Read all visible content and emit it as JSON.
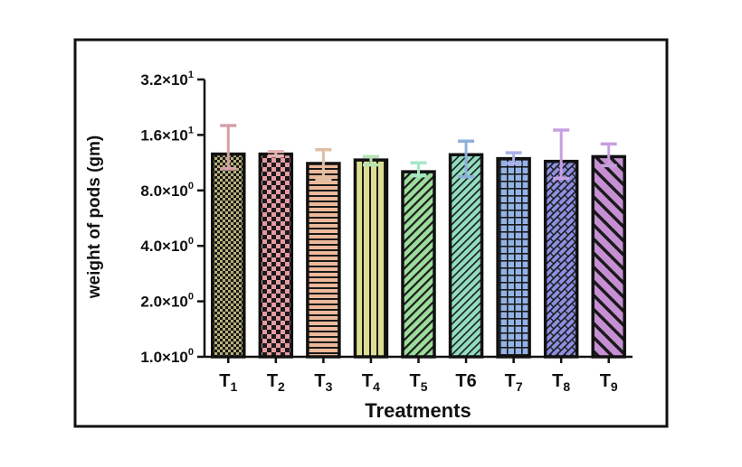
{
  "chart_data": {
    "type": "bar",
    "scale": "log2",
    "ylabel": "weight of pods (gm)",
    "xlabel": "Treatments",
    "ylim": [
      1.0,
      32.0
    ],
    "yticks": [
      {
        "value": 1.0,
        "mantissa": "1.0",
        "exp": "0"
      },
      {
        "value": 2.0,
        "mantissa": "2.0",
        "exp": "0"
      },
      {
        "value": 4.0,
        "mantissa": "4.0",
        "exp": "0"
      },
      {
        "value": 8.0,
        "mantissa": "8.0",
        "exp": "0"
      },
      {
        "value": 16.0,
        "mantissa": "1.6",
        "exp": "1"
      },
      {
        "value": 32.0,
        "mantissa": "3.2",
        "exp": "1"
      }
    ],
    "categories": [
      {
        "base": "T",
        "sub": "1"
      },
      {
        "base": "T",
        "sub": "2"
      },
      {
        "base": "T",
        "sub": "3"
      },
      {
        "base": "T",
        "sub": "4"
      },
      {
        "base": "T",
        "sub": "5"
      },
      {
        "base": "T6",
        "sub": ""
      },
      {
        "base": "T",
        "sub": "7"
      },
      {
        "base": "T",
        "sub": "8"
      },
      {
        "base": "T",
        "sub": "9"
      }
    ],
    "values": [
      12.6,
      12.6,
      11.2,
      11.7,
      10.1,
      12.5,
      11.9,
      11.5,
      12.2
    ],
    "err_high": [
      18.0,
      13.0,
      13.3,
      12.2,
      11.3,
      14.8,
      12.8,
      17.0,
      14.3
    ],
    "err_low": [
      10.5,
      12.3,
      9.2,
      11.0,
      9.6,
      9.5,
      11.2,
      9.3,
      10.9
    ],
    "bar_colors": [
      "#b8b07a",
      "#e79aa2",
      "#ecb99a",
      "#dcdf93",
      "#9edc9c",
      "#93dcc0",
      "#93b3e6",
      "#8c8fe0",
      "#c68fd3"
    ],
    "error_colors": [
      "#d6a0a8",
      "#e8b4b4",
      "#ddbfa5",
      "#b7e2b4",
      "#a7e6c6",
      "#8fb0dc",
      "#aab0e8",
      "#c79fe0",
      "#c79fe0"
    ],
    "patterns": [
      "fine-check",
      "checker",
      "hlines",
      "vlines",
      "diag-down",
      "diag-down-fine",
      "grid",
      "diag-cross",
      "diag-down-wide"
    ]
  }
}
